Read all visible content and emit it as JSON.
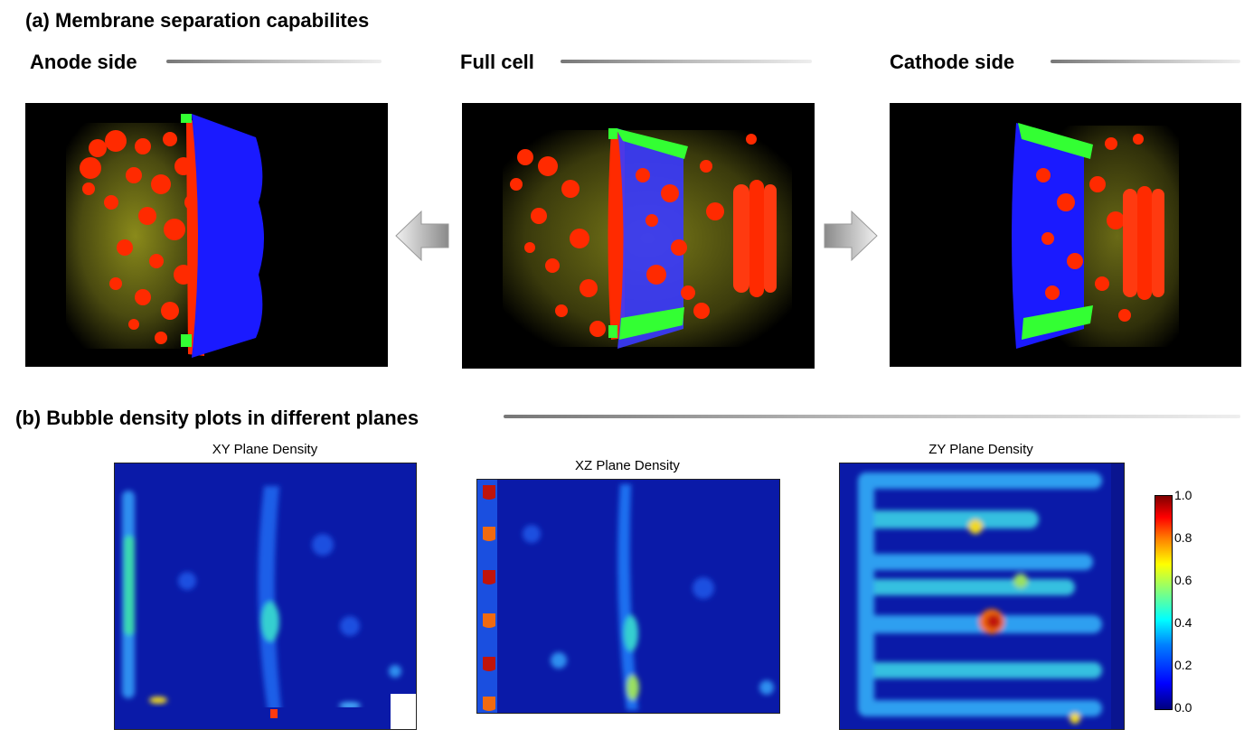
{
  "section_a": {
    "title": "(a) Membrane separation capabilites",
    "columns": [
      {
        "label": "Anode side"
      },
      {
        "label": "Full cell"
      },
      {
        "label": "Cathode side"
      }
    ]
  },
  "section_b": {
    "title": "(b) Bubble density plots in different planes",
    "plots": [
      {
        "title": "XY Plane Density"
      },
      {
        "title": "XZ Plane Density"
      },
      {
        "title": "ZY Plane Density"
      }
    ],
    "colorbar": {
      "ticks": [
        "1.0",
        "0.8",
        "0.6",
        "0.4",
        "0.2",
        "0.0"
      ],
      "colormap": "jet"
    }
  },
  "colors": {
    "membrane": "#1a1aff",
    "bubbles": "#ff2a00",
    "gasket": "#33ff33",
    "background": "#000000",
    "density_low": "#0a1aa8"
  },
  "icons": [
    "arrow-left-icon",
    "arrow-right-icon"
  ]
}
